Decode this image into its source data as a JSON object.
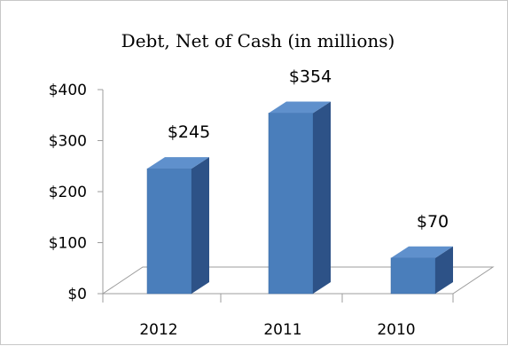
{
  "chart_data": {
    "type": "bar",
    "title": "Debt, Net of Cash (in millions)",
    "categories": [
      "2012",
      "2011",
      "2010"
    ],
    "values": [
      245,
      354,
      70
    ],
    "data_labels": [
      "$245",
      "$354",
      "$70"
    ],
    "y_tick_values": [
      0,
      100,
      200,
      300,
      400
    ],
    "y_tick_labels": [
      "$0",
      "$100",
      "$200",
      "$300",
      "$400"
    ],
    "ylim": [
      0,
      400
    ],
    "xlabel": "",
    "ylabel": "",
    "grid": false,
    "legend": "none",
    "style": "3d-column",
    "bar_color": "#4a7ebb",
    "bar_side_color": "#2d5287",
    "bar_top_color": "#5f90cc"
  }
}
